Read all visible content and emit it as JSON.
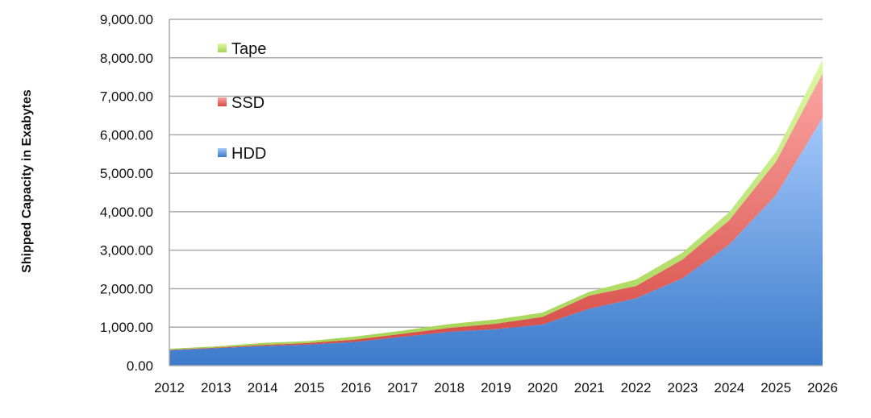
{
  "chart_data": {
    "type": "area",
    "stacked": true,
    "title": "",
    "xlabel": "",
    "ylabel": "Shipped Capacity in Exabytes",
    "categories": [
      "2012",
      "2013",
      "2014",
      "2015",
      "2016",
      "2017",
      "2018",
      "2019",
      "2020",
      "2021",
      "2022",
      "2023",
      "2024",
      "2025",
      "2026"
    ],
    "ylim": [
      0,
      9000
    ],
    "yticks": [
      "0.00",
      "1,000.00",
      "2,000.00",
      "3,000.00",
      "4,000.00",
      "5,000.00",
      "6,000.00",
      "7,000.00",
      "8,000.00",
      "9,000.00"
    ],
    "grid": true,
    "legend_position": "top-left",
    "series": [
      {
        "name": "HDD",
        "color": "#5B93DC",
        "values": [
          400,
          455,
          510,
          550,
          620,
          750,
          880,
          950,
          1070,
          1480,
          1750,
          2270,
          3150,
          4430,
          6450
        ]
      },
      {
        "name": "SSD",
        "color": "#E96A66",
        "values": [
          10,
          15,
          30,
          40,
          60,
          80,
          100,
          140,
          200,
          340,
          320,
          490,
          630,
          870,
          1150
        ]
      },
      {
        "name": "Tape",
        "color": "#B8E26E",
        "values": [
          30,
          30,
          50,
          50,
          80,
          80,
          100,
          110,
          110,
          100,
          170,
          180,
          210,
          250,
          350
        ]
      }
    ],
    "legend_order": [
      "Tape",
      "SSD",
      "HDD"
    ]
  }
}
